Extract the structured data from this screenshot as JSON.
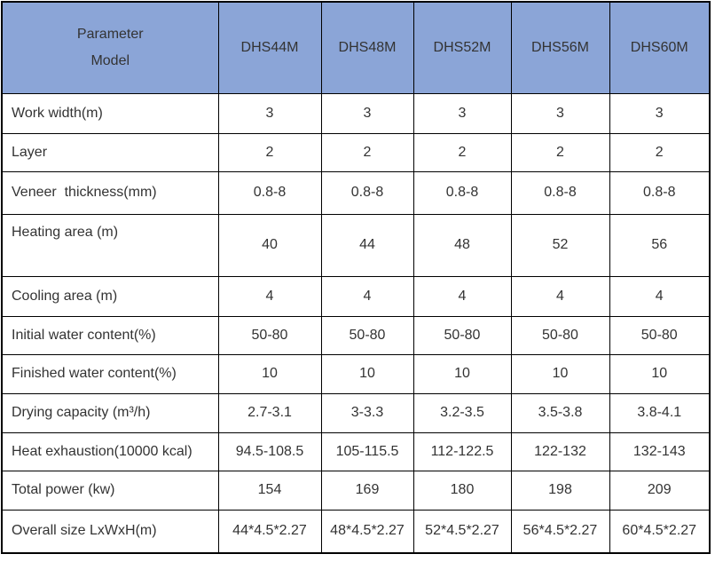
{
  "colors": {
    "header_bg": "#8BA5D7",
    "border": "#000000",
    "text": "#333333"
  },
  "table": {
    "header": {
      "corner_line1": "Parameter",
      "corner_line2": "Model",
      "models": [
        "DHS44M",
        "DHS48M",
        "DHS52M",
        "DHS56M",
        "DHS60M"
      ]
    },
    "rows": [
      {
        "label": "Work width(m)",
        "values": [
          "3",
          "3",
          "3",
          "3",
          "3"
        ]
      },
      {
        "label": "Layer",
        "values": [
          "2",
          "2",
          "2",
          "2",
          "2"
        ]
      },
      {
        "label": "Veneer  thickness(mm)",
        "values": [
          "0.8-8",
          "0.8-8",
          "0.8-8",
          "0.8-8",
          "0.8-8"
        ]
      },
      {
        "label": "Heating area (m)",
        "values": [
          "40",
          "44",
          "48",
          "52",
          "56"
        ]
      },
      {
        "label": "Cooling area (m)",
        "values": [
          "4",
          "4",
          "4",
          "4",
          "4"
        ]
      },
      {
        "label": "Initial water content(%)",
        "values": [
          "50-80",
          "50-80",
          "50-80",
          "50-80",
          "50-80"
        ]
      },
      {
        "label": "Finished water content(%)",
        "values": [
          "10",
          "10",
          "10",
          "10",
          "10"
        ]
      },
      {
        "label": "Drying capacity (m³/h)",
        "values": [
          "2.7-3.1",
          "3-3.3",
          "3.2-3.5",
          "3.5-3.8",
          "3.8-4.1"
        ]
      },
      {
        "label": "Heat exhaustion(10000 kcal)",
        "values": [
          "94.5-108.5",
          "105-115.5",
          "112-122.5",
          "122-132",
          "132-143"
        ]
      },
      {
        "label": "Total power (kw)",
        "values": [
          "154",
          "169",
          "180",
          "198",
          "209"
        ]
      },
      {
        "label": "Overall size LxWxH(m)",
        "values": [
          "44*4.5*2.27",
          "48*4.5*2.27",
          "52*4.5*2.27",
          "56*4.5*2.27",
          "60*4.5*2.27"
        ]
      }
    ]
  }
}
